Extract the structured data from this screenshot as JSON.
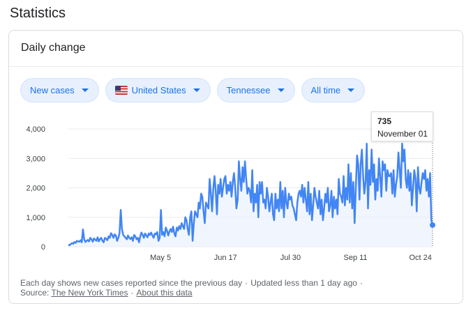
{
  "page_title": "Statistics",
  "card_title": "Daily change",
  "filters": [
    {
      "label": "New cases"
    },
    {
      "label": "United States",
      "flag": "us-flag-icon"
    },
    {
      "label": "Tennessee"
    },
    {
      "label": "All time"
    }
  ],
  "tooltip": {
    "value": "735",
    "date": "November 01"
  },
  "footer": {
    "note": "Each day shows new cases reported since the previous day",
    "updated": "Updated less than 1 day ago",
    "source_label": "Source:",
    "source_link": "The New York Times",
    "about_link": "About this data"
  },
  "colors": {
    "line": "#4285f4",
    "fill": "#e8f0fe",
    "chip_text": "#1a73e8"
  },
  "chart_data": {
    "type": "line",
    "x_start": "2020-03-05",
    "x_end": "2020-11-01",
    "xtick_labels": [
      "May 5",
      "Jun 17",
      "Jul 30",
      "Sep 11",
      "Oct 24"
    ],
    "xtick_dates": [
      "2020-05-05",
      "2020-06-17",
      "2020-07-30",
      "2020-09-11",
      "2020-10-24"
    ],
    "ytick_labels": [
      "0",
      "1,000",
      "2,000",
      "3,000",
      "4,000"
    ],
    "yticks": [
      0,
      1000,
      2000,
      3000,
      4000
    ],
    "ylim": [
      0,
      4000
    ],
    "grid": "horizontal",
    "highlight": {
      "date": "2020-11-01",
      "value": 735
    },
    "series": [
      {
        "values": [
          70,
          50,
          90,
          120,
          100,
          160,
          130,
          200,
          180,
          170,
          220,
          150,
          590,
          250,
          160,
          200,
          230,
          180,
          300,
          250,
          170,
          280,
          240,
          200,
          320,
          180,
          260,
          300,
          200,
          150,
          300,
          270,
          220,
          350,
          300,
          460,
          400,
          300,
          420,
          380,
          200,
          300,
          450,
          1250,
          600,
          400,
          350,
          300,
          250,
          380,
          300,
          260,
          320,
          200,
          400,
          350,
          250,
          300,
          150,
          350,
          480,
          400,
          300,
          450,
          380,
          320,
          450,
          400,
          480,
          380,
          300,
          450,
          420,
          500,
          200,
          300,
          1250,
          400,
          500,
          350,
          650,
          550,
          380,
          520,
          600,
          500,
          680,
          450,
          350,
          650,
          550,
          700,
          600,
          800,
          700,
          600,
          1000,
          900,
          600,
          400,
          1000,
          1200,
          200,
          800,
          1200,
          1100,
          1000,
          1500,
          1300,
          1800,
          1700,
          1200,
          800,
          1500,
          1400,
          1300,
          2300,
          1800,
          1200,
          2000,
          2400,
          1900,
          1100,
          2100,
          1800,
          2300,
          1700,
          2000,
          2300,
          2400,
          1800,
          2100,
          1900,
          2200,
          1700,
          2200,
          2500,
          2000,
          1300,
          1600,
          2900,
          2300,
          1900,
          2700,
          2200,
          2900,
          2300,
          1800,
          2000,
          1900,
          1500,
          2600,
          1200,
          1800,
          1500,
          2100,
          1000,
          2200,
          1800,
          2200,
          1500,
          1600,
          1300,
          2000,
          1700,
          1200,
          1500,
          1800,
          1100,
          900,
          1800,
          1300,
          1600,
          1200,
          2200,
          1300,
          1900,
          1000,
          2000,
          1500,
          1300,
          1800,
          1600,
          1700,
          1400,
          1300,
          1100,
          900,
          1500,
          1800,
          1900,
          1700,
          2100,
          1500,
          2000,
          1600,
          1200,
          2200,
          1100,
          1800,
          900,
          1400,
          2000,
          1700,
          1500,
          1300,
          1900,
          1100,
          1600,
          900,
          1300,
          1800,
          1500,
          2000,
          1200,
          1400,
          1900,
          1000,
          1700,
          1300,
          1600,
          1100,
          2300,
          1800,
          1700,
          1500,
          2400,
          1400,
          2000,
          1600,
          2800,
          1500,
          2500,
          1300,
          2200,
          800,
          2000,
          3100,
          2800,
          1600,
          2800,
          3300,
          2400,
          1800,
          2200,
          3500,
          1300,
          2600,
          2100,
          3300,
          2200,
          2800,
          1600,
          2300,
          1900,
          3000,
          2400,
          1700,
          2900,
          2600,
          2800,
          1900,
          2600,
          2400,
          2400,
          2500,
          1800,
          2600,
          1700,
          2100,
          2400,
          3200,
          2600,
          2000,
          3500,
          2900,
          3300,
          2300,
          2000,
          2600,
          1900,
          2500,
          1400,
          2000,
          2600,
          2300,
          1200,
          2700,
          2000,
          1800,
          2200,
          2500,
          2300,
          2600,
          1900,
          2300,
          1700,
          2500,
          900,
          735
        ]
      }
    ]
  }
}
